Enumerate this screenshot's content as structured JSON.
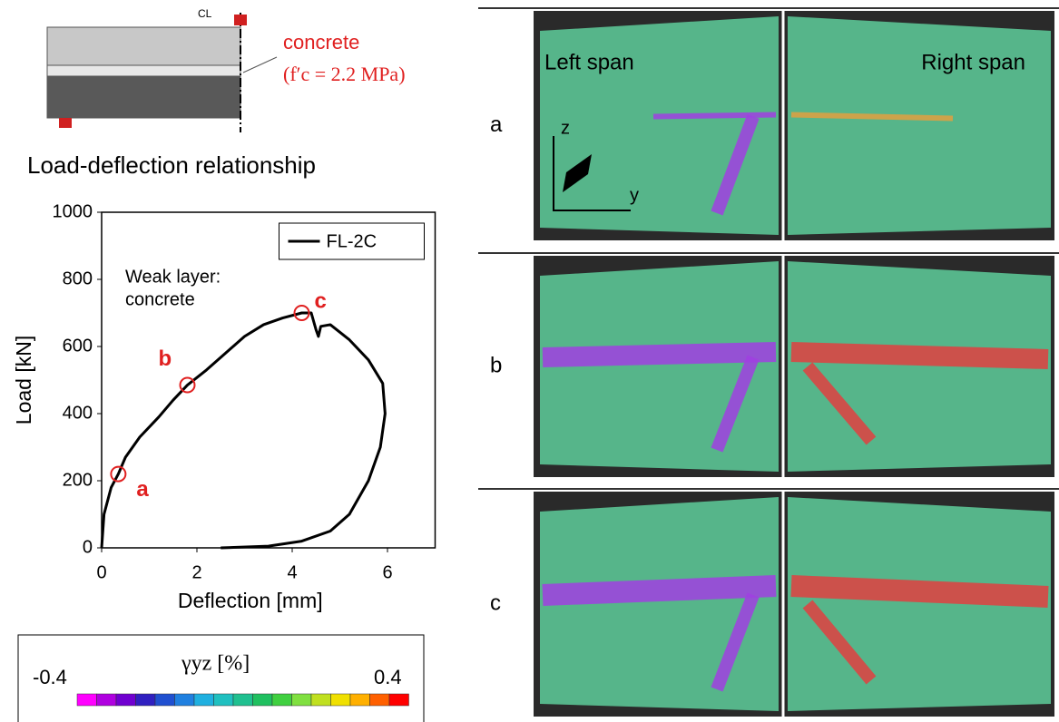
{
  "chart_data": {
    "type": "line",
    "title": "Load-deflection relationship",
    "x_label": "Deflection [mm]",
    "y_label": "Load [kN]",
    "xlim": [
      0,
      7
    ],
    "xticks": [
      0,
      2,
      4,
      6
    ],
    "ylim": [
      0,
      1000
    ],
    "yticks": [
      0,
      200,
      400,
      600,
      800,
      1000
    ],
    "annotation": [
      "Weak layer:",
      "concrete"
    ],
    "legend": "upper right",
    "x": [
      0,
      0.05,
      0.2,
      0.35,
      0.5,
      0.8,
      1.2,
      1.5,
      1.8,
      2.2,
      2.6,
      3.0,
      3.4,
      3.8,
      4.2,
      4.4,
      4.5,
      4.55,
      4.6,
      4.8,
      5.2,
      5.6,
      5.9,
      5.95,
      5.85,
      5.6,
      5.2,
      4.8,
      4.2,
      3.5,
      2.5
    ],
    "series": [
      {
        "name": "FL-2C",
        "color": "#000000",
        "values": [
          0,
          100,
          180,
          220,
          270,
          330,
          390,
          440,
          485,
          530,
          580,
          630,
          665,
          685,
          700,
          700,
          650,
          630,
          660,
          665,
          620,
          560,
          490,
          400,
          300,
          200,
          100,
          50,
          20,
          5,
          0
        ]
      }
    ],
    "points": {
      "labels": [
        "a",
        "b",
        "c"
      ],
      "x": [
        0.35,
        1.8,
        4.2
      ],
      "values": [
        220,
        485,
        700
      ],
      "color": "#e02020"
    }
  },
  "diagram": {
    "centerline": "CL",
    "material": "concrete",
    "strength": "(f′c = 2.2 MPa)"
  },
  "colorbar": {
    "label": "γyz [%]",
    "min": "-0.4",
    "max": "0.4"
  },
  "photos": {
    "panels": [
      "a",
      "b",
      "c"
    ],
    "left": "Left span",
    "right": "Right span",
    "axis_z": "z",
    "axis_y": "y"
  }
}
